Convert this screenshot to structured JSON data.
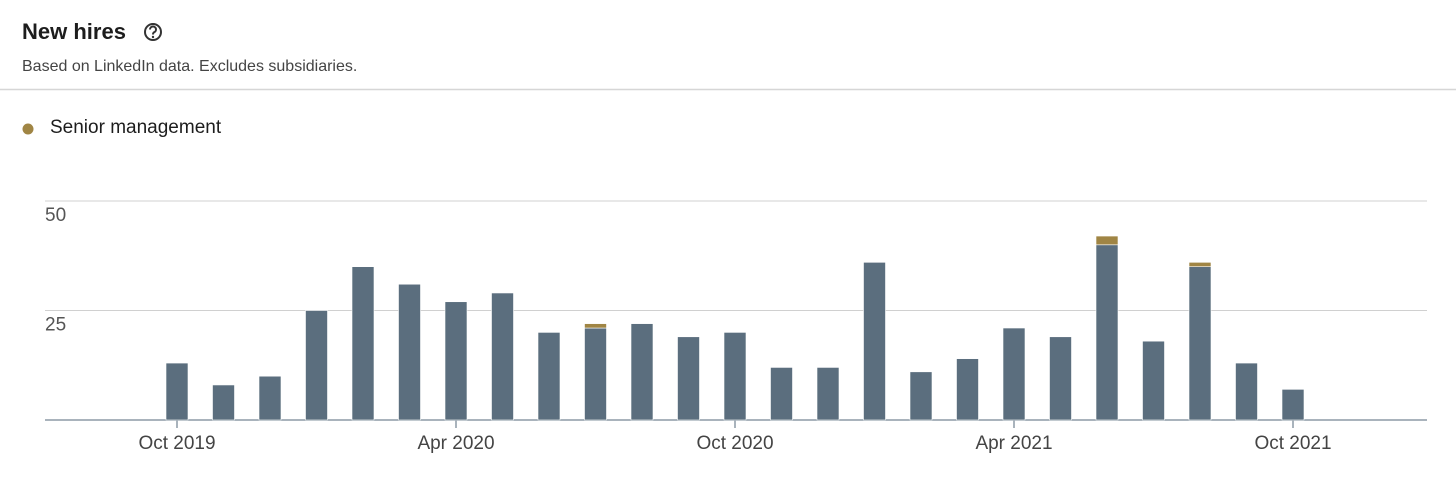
{
  "header": {
    "title": "New hires",
    "subtitle": "Based on LinkedIn data. Excludes subsidiaries."
  },
  "chart_data": {
    "type": "stacked-bar",
    "categories": [
      "Oct 2019",
      null,
      null,
      null,
      null,
      null,
      "Apr 2020",
      null,
      null,
      null,
      null,
      null,
      "Oct 2020",
      null,
      null,
      null,
      null,
      null,
      "Apr 2021",
      null,
      null,
      null,
      null,
      null,
      "Oct 2021"
    ],
    "series": [
      {
        "color": "#5b6e7e",
        "values": [
          13,
          8,
          10,
          25,
          35,
          31,
          27,
          29,
          20,
          21,
          22,
          19,
          20,
          12,
          12,
          36,
          11,
          14,
          21,
          19,
          40,
          18,
          35,
          13,
          7
        ]
      },
      {
        "name": "Senior management",
        "color": "#a08544",
        "values": [
          0,
          0,
          0,
          0,
          0,
          0,
          0,
          0,
          0,
          1,
          0,
          0,
          0,
          0,
          0,
          0,
          0,
          0,
          0,
          0,
          2,
          0,
          1,
          0,
          0
        ]
      }
    ],
    "ylim": [
      0,
      50
    ],
    "yticks": [
      25,
      50
    ],
    "grid": true,
    "legend": "top-left"
  }
}
